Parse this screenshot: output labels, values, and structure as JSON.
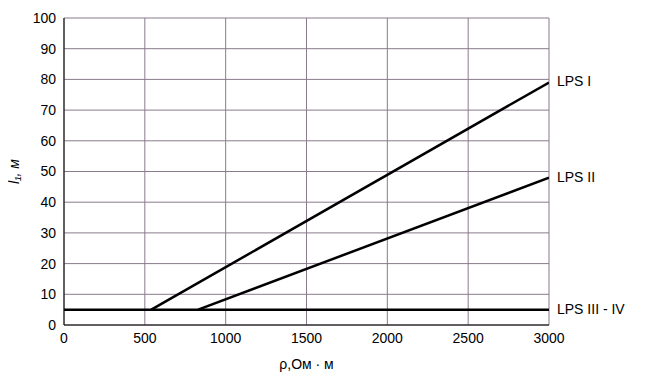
{
  "chart_data": {
    "type": "line",
    "x_label": "ρ,Ом · м",
    "y_label": "l₁, м",
    "xlim": [
      0,
      3000
    ],
    "ylim": [
      0,
      100
    ],
    "xticks": [
      0,
      500,
      1000,
      1500,
      2000,
      2500,
      3000
    ],
    "yticks": [
      0,
      10,
      20,
      30,
      40,
      50,
      60,
      70,
      80,
      90,
      100
    ],
    "grid": true,
    "series": [
      {
        "name": "LPS I",
        "color": "#000000",
        "x": [
          540,
          3000
        ],
        "values": [
          5,
          79
        ]
      },
      {
        "name": "LPS II",
        "color": "#000000",
        "x": [
          830,
          3000
        ],
        "values": [
          5,
          48
        ]
      },
      {
        "name": "LPS III - IV",
        "color": "#000000",
        "x": [
          0,
          3000
        ],
        "values": [
          5,
          5
        ]
      }
    ]
  }
}
